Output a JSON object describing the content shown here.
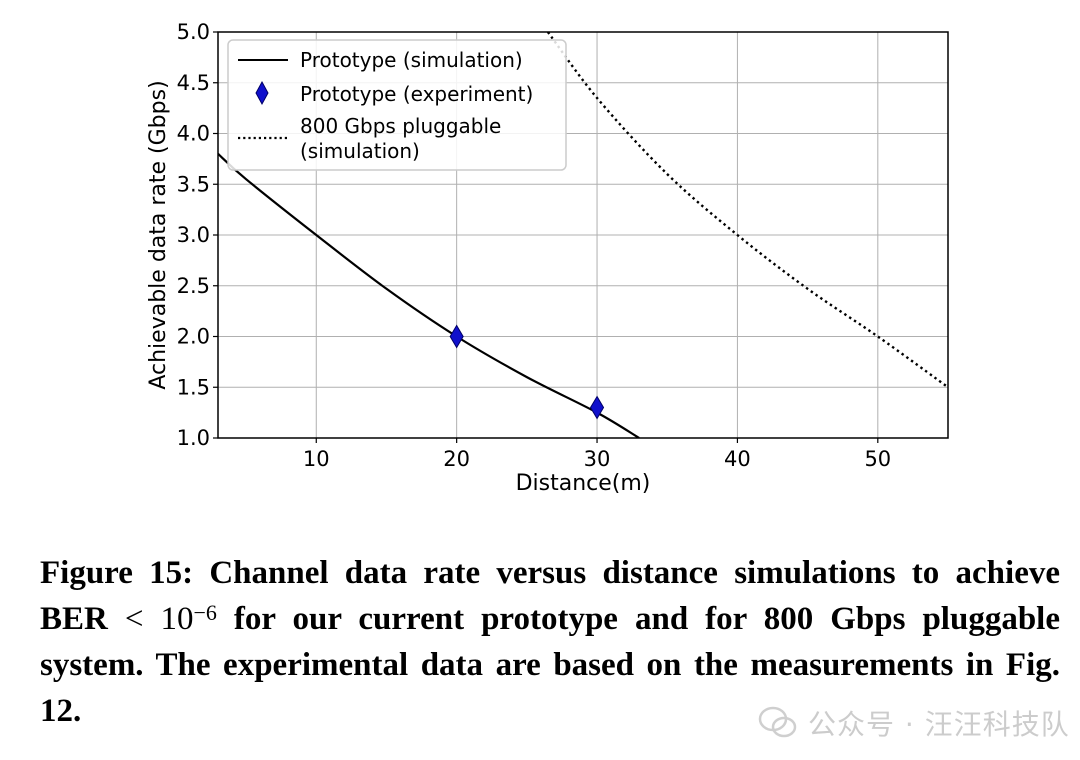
{
  "chart_data": {
    "type": "line",
    "xlabel": "Distance(m)",
    "ylabel": "Achievable data rate (Gbps)",
    "xlim": [
      3,
      55
    ],
    "ylim": [
      1.0,
      5.0
    ],
    "xticks": [
      10,
      20,
      30,
      40,
      50
    ],
    "yticks": [
      "1.0",
      "1.5",
      "2.0",
      "2.5",
      "3.0",
      "3.5",
      "4.0",
      "4.5",
      "5.0"
    ],
    "grid": true,
    "legend_position": "top-left",
    "series": [
      {
        "name": "Prototype (simulation)",
        "style": "solid",
        "color": "#000000",
        "x": [
          3,
          5,
          10,
          15,
          20,
          25,
          30,
          33
        ],
        "y": [
          3.8,
          3.55,
          3.0,
          2.47,
          2.0,
          1.6,
          1.25,
          1.0
        ]
      },
      {
        "name": "Prototype (experiment)",
        "style": "marker-diamond",
        "color": "#1010cc",
        "x": [
          20,
          30
        ],
        "y": [
          2.0,
          1.3
        ]
      },
      {
        "name": "800 Gbps pluggable\n(simulation)",
        "style": "dotted",
        "color": "#000000",
        "x": [
          26.5,
          30,
          35,
          40,
          45,
          50,
          55
        ],
        "y": [
          5.0,
          4.35,
          3.6,
          3.0,
          2.47,
          2.0,
          1.5
        ]
      }
    ]
  },
  "caption": {
    "prefix": "Figure 15: Channel data rate versus distance simulations to achieve BER ",
    "lt": "<",
    "base": "10",
    "exponent": "−6",
    "suffix": " for our current prototype and for 800 Gbps pluggable system. The experimental data are based on the measurements in Fig. 12."
  },
  "watermark": {
    "text": "公众号 · 汪汪科技队"
  }
}
